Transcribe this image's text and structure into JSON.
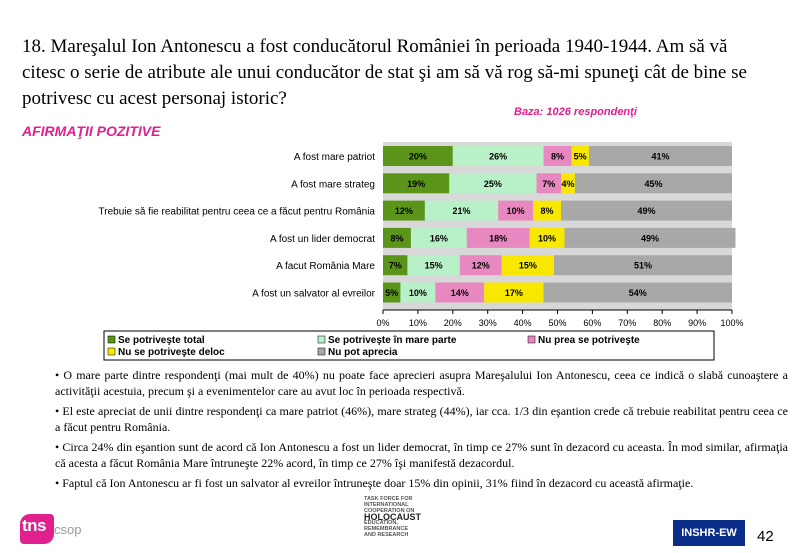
{
  "question_title": "18. Mareşalul Ion Antonescu a fost conducătorul României în perioada 1940-1944. Am să vă citesc o serie de atribute ale unui conducător de stat şi am să vă rog să-mi spuneţi cât de bine se potrivesc cu acest personaj istoric?",
  "base_note": "Baza: 1026 respondenţi",
  "section_label": "AFIRMAŢII POZITIVE",
  "chart_data": {
    "type": "bar",
    "orientation": "horizontal",
    "stacked": "percent",
    "categories": [
      "A fost mare patriot",
      "A fost mare strateg",
      "Trebuie să fie reabilitat pentru ceea ce a făcut pentru România",
      "A fost un lider democrat",
      "A facut România Mare",
      "A fost un salvator al evreilor"
    ],
    "series": [
      {
        "name": "Se potriveşte total",
        "color": "#5a9419",
        "values": [
          20,
          19,
          12,
          8,
          7,
          5
        ],
        "labels": [
          "20%",
          "19%",
          "12%",
          "8%",
          "7%",
          "5%"
        ]
      },
      {
        "name": "Se potriveşte în mare parte",
        "color": "#b8f0c8",
        "values": [
          26,
          25,
          21,
          16,
          15,
          10
        ],
        "labels": [
          "26%",
          "25%",
          "21%",
          "16%",
          "15%",
          "10%"
        ]
      },
      {
        "name": "Nu prea se potriveşte",
        "color": "#e888c0",
        "values": [
          8,
          7,
          10,
          18,
          12,
          14
        ],
        "labels": [
          "8%",
          "7%",
          "10%",
          "18%",
          "12%",
          "14%"
        ]
      },
      {
        "name": "Nu se potriveşte deloc",
        "color": "#f8e800",
        "values": [
          5,
          4,
          8,
          10,
          15,
          17
        ],
        "labels": [
          "5%",
          "4%",
          "8%",
          "10%",
          "15%",
          "17%"
        ]
      },
      {
        "name": "Nu pot aprecia",
        "color": "#a8a8a8",
        "values": [
          41,
          45,
          49,
          49,
          51,
          54
        ],
        "labels": [
          "41%",
          "45%",
          "49%",
          "49%",
          "51%",
          "54%"
        ]
      }
    ],
    "xlim": [
      0,
      100
    ],
    "x_ticks": [
      "0%",
      "10%",
      "20%",
      "30%",
      "40%",
      "50%",
      "60%",
      "70%",
      "80%",
      "90%",
      "100%"
    ],
    "legend_position": "bottom",
    "grid": false
  },
  "bullets": [
    "• O mare parte dintre respondenţi (mai mult de 40%) nu poate face aprecieri asupra Mareşalului Ion Antonescu, ceea ce indică o slabă cunoaştere a activităţii acestuia, precum şi a evenimentelor care au avut loc în perioada respectivă.",
    "• El este apreciat de unii dintre respondenţi ca mare patriot (46%), mare strateg (44%), iar cca. 1/3 din eşantion crede că trebuie reabilitat pentru ceea ce a făcut pentru România.",
    "• Circa 24% din eşantion sunt de acord că Ion Antonescu a fost un lider democrat, în timp ce 27% sunt în dezacord cu aceasta. În mod similar, afirmaţia că acesta a făcut România Mare întruneşte 22% acord, în timp ce 27% îşi manifestă dezacordul.",
    "• Faptul că Ion Antonescu ar fi fost un salvator al evreilor întruneşte doar 15% din opinii, 31% fiind în dezacord cu această afirmaţie."
  ],
  "footer": {
    "logo_tns": "tns",
    "logo_csop": "csop",
    "taskforce_lines": [
      "TASK FORCE FOR",
      "INTERNATIONAL",
      "COOPERATION ON",
      "HOLOCAUST",
      "EDUCATION,",
      "REMEMBRANCE",
      "AND RESEARCH"
    ],
    "institute_badge": "INSHR-EW",
    "page_number": "42"
  }
}
